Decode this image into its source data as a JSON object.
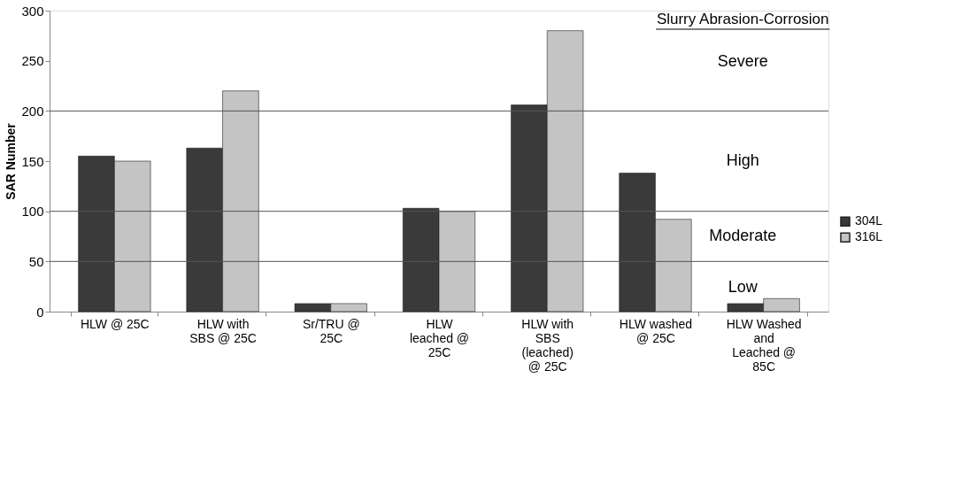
{
  "chart_data": {
    "type": "bar",
    "ylabel": "SAR Number",
    "categories": [
      "HLW @ 25C",
      "HLW with SBS @ 25C",
      "Sr/TRU @ 25C",
      "HLW leached @ 25C",
      "HLW with SBS (leached) @ 25C",
      "HLW washed @ 25C",
      "HLW Washed and Leached @ 85C"
    ],
    "series": [
      {
        "name": "304L",
        "color": "#3a3a3a",
        "values": [
          155,
          163,
          8,
          103,
          206,
          138,
          8
        ]
      },
      {
        "name": "316L",
        "color": "#c4c4c4",
        "values": [
          150,
          220,
          8,
          100,
          280,
          92,
          13
        ]
      }
    ],
    "ylim": [
      0,
      300
    ],
    "yticks": [
      0,
      50,
      100,
      150,
      200,
      250,
      300
    ],
    "grid": false,
    "legend": "right",
    "ref_lines": [
      {
        "axis": "y",
        "value": 200
      },
      {
        "axis": "y",
        "value": 100
      },
      {
        "axis": "y",
        "value": 50
      }
    ],
    "annotations": [
      "Slurry Abrasion-Corrosion",
      "Severe",
      "High",
      "Moderate",
      "Low"
    ]
  }
}
